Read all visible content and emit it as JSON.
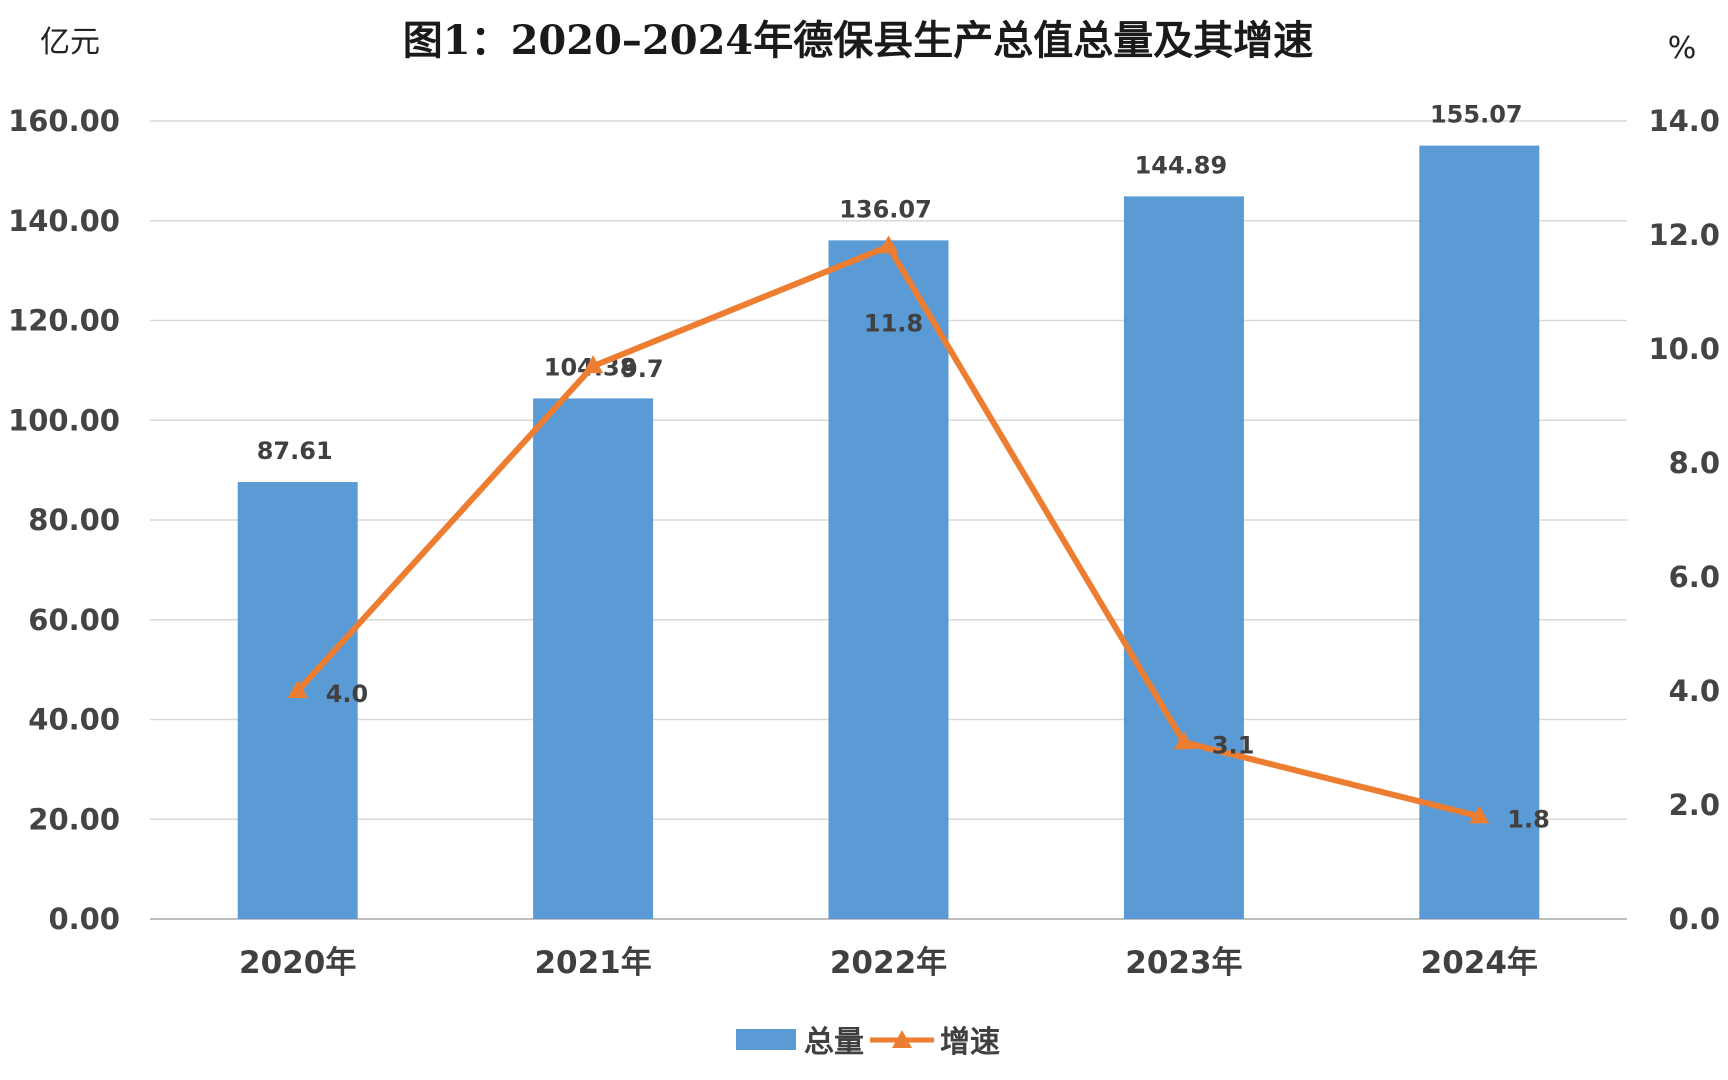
{
  "chart_data": {
    "type": "bar",
    "title": "图1：2020–2024年德保县生产总值总量及其增速",
    "left_unit": "亿元",
    "right_unit": "%",
    "categories": [
      "2020年",
      "2021年",
      "2022年",
      "2023年",
      "2024年"
    ],
    "series": [
      {
        "name": "总量",
        "type": "bar",
        "axis": "left",
        "color": "#5B9BD5",
        "values": [
          87.61,
          104.38,
          136.07,
          144.89,
          155.07
        ],
        "labels": [
          "87.61",
          "104.38",
          "136.07",
          "144.89",
          "155.07"
        ]
      },
      {
        "name": "增速",
        "type": "line",
        "axis": "right",
        "marker": "triangle",
        "color": "#ED7D31",
        "values": [
          4.0,
          9.7,
          11.8,
          3.1,
          1.8
        ],
        "labels": [
          "4.0",
          "9.7",
          "11.8",
          "3.1",
          "1.8"
        ]
      }
    ],
    "left_axis": {
      "ylim": [
        0,
        160
      ],
      "ticks": [
        0,
        20,
        40,
        60,
        80,
        100,
        120,
        140,
        160
      ],
      "tick_labels": [
        "0.00",
        "20.00",
        "40.00",
        "60.00",
        "80.00",
        "100.00",
        "120.00",
        "140.00",
        "160.00"
      ]
    },
    "right_axis": {
      "ylim": [
        0,
        14
      ],
      "ticks": [
        0,
        2,
        4,
        6,
        8,
        10,
        12,
        14
      ],
      "tick_labels": [
        "0.0",
        "2.0",
        "4.0",
        "6.0",
        "8.0",
        "10.0",
        "12.0",
        "14.0"
      ]
    },
    "grid": true,
    "legend_position": "bottom-center"
  }
}
